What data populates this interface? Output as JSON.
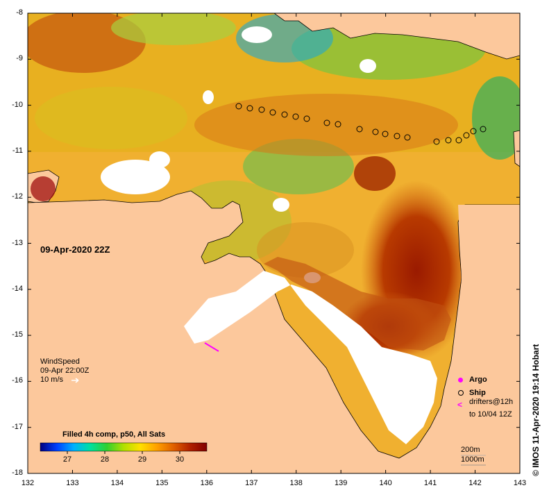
{
  "map": {
    "date_label": "09-Apr-2020 22Z",
    "x_ticks": [
      "132",
      "133",
      "134",
      "135",
      "136",
      "137",
      "138",
      "139",
      "140",
      "141",
      "142",
      "143"
    ],
    "y_ticks": [
      "-8",
      "-9",
      "-10",
      "-11",
      "-12",
      "-13",
      "-14",
      "-15",
      "-16",
      "-17",
      "-18"
    ],
    "extent": {
      "lon": [
        132,
        143
      ],
      "lat": [
        -18,
        -8
      ]
    }
  },
  "wind_legend": {
    "title": "WindSpeed",
    "time": "09-Apr 22:00Z",
    "scale": "10 m/s"
  },
  "colorbar": {
    "title": "Filled 4h comp, p50, All Sats",
    "ticks": [
      "27",
      "28",
      "29",
      "30"
    ],
    "colors": [
      "#000080",
      "#0040ff",
      "#00b0ff",
      "#00e0a0",
      "#30d030",
      "#b0e000",
      "#ffe000",
      "#ffa000",
      "#e06000",
      "#b02000",
      "#800000"
    ]
  },
  "legend": {
    "argo": "Argo",
    "ship": "Ship",
    "drifters_line1": "drifters@12h",
    "drifters_line2": "to 10/04 12Z",
    "depth1": "200m",
    "depth2": "1000m"
  },
  "credit": "© IMOS 11-Apr-2020 19:14 Hobart",
  "colors": {
    "land": "#fcc89c",
    "ship_marker": "#000000",
    "argo_marker": "#ff00ff"
  }
}
